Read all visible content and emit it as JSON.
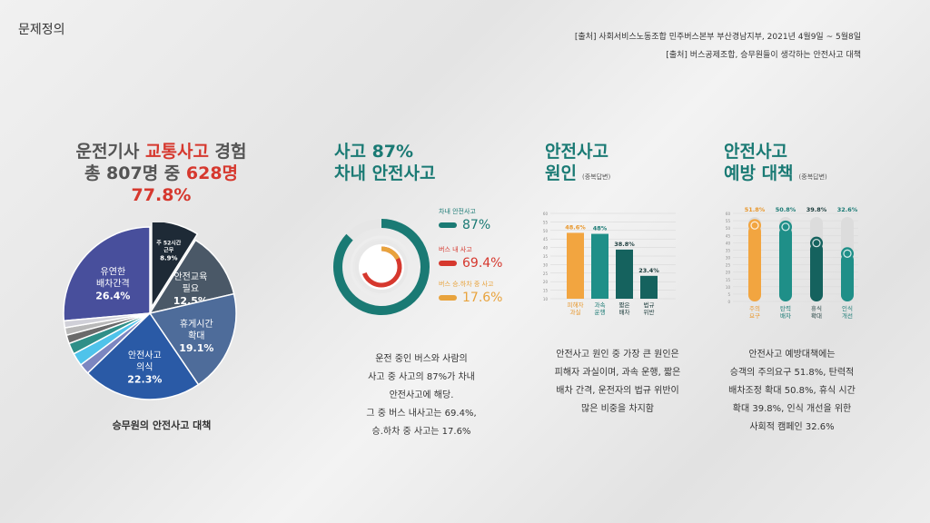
{
  "header": {
    "title": "문제정의",
    "source_1": "[출처] 사회서비스노동조합 민주버스본부 부산경남지부, 2021년 4월9일 ~ 5월8일",
    "source_2": "[출처] 버스공제조합, 승무원들이 생각하는 안전사고 대책"
  },
  "pie_section": {
    "title_1a": "운전기사 ",
    "title_1b": "교통사고",
    "title_1c": " 경험",
    "title_2a": "총 807명 중 ",
    "title_2b": "628명",
    "title_3": "77.8%",
    "caption": "승무원의 안전사고 대책"
  },
  "accident_section": {
    "title_1": "사고 87%",
    "title_2": "차내 안전사고",
    "desc": [
      "운전 중인 버스와 사람의",
      "사고 중 사고의 87%가 차내",
      "안전사고에 해당.",
      "그 중 버스 내사고는 69.4%,",
      "승.하차 중 사고는 17.6%"
    ]
  },
  "cause_section": {
    "title_1": "안전사고",
    "title_2": "원인",
    "note": "(중복답변)",
    "desc": [
      "안전사고 원인 중 가장 큰 원인은",
      "피해자 과실이며, 과속 운행, 짧은",
      "배차 간격, 운전자의 법규 위반이",
      "많은 비중을 차지함"
    ]
  },
  "prevention_section": {
    "title_1": "안전사고",
    "title_2": "예방 대책",
    "note": "(중복답변)",
    "desc": [
      "안전사고 예방대책에는",
      "승객의 주의요구 51.8%, 탄력적",
      "배차조정 확대 50.8%, 휴식 시간",
      "확대 39.8%, 인식 개선을 위한",
      "사회적 캠페인 32.6%"
    ]
  },
  "chart_data": [
    {
      "type": "pie",
      "title": "승무원의 안전사고 대책",
      "slices": [
        {
          "label": [
            "유연한",
            "배차간격"
          ],
          "value_label": "26.4%",
          "value": 26.4,
          "color": "#484f9c"
        },
        {
          "label": [
            "주 52시간",
            "근무"
          ],
          "value_label": "8.9%",
          "value": 8.9,
          "color": "#1e2a36"
        },
        {
          "label": [
            "안전교육",
            "필요"
          ],
          "value_label": "12.5%",
          "value": 12.5,
          "color": "#4a5867"
        },
        {
          "label": [
            "휴게시간",
            "확대"
          ],
          "value_label": "19.1%",
          "value": 19.1,
          "color": "#4e6c9a"
        },
        {
          "label": [
            "안전사고",
            "의식"
          ],
          "value_label": "22.3%",
          "value": 22.3,
          "color": "#2a5aa6"
        },
        {
          "label": [],
          "value_label": "",
          "value": 2.0,
          "color": "#7c86c0"
        },
        {
          "label": [],
          "value_label": "",
          "value": 2.4,
          "color": "#4fc3ea"
        },
        {
          "label": [],
          "value_label": "",
          "value": 2.1,
          "color": "#2f8f88"
        },
        {
          "label": [],
          "value_label": "",
          "value": 1.6,
          "color": "#6a6a6a"
        },
        {
          "label": [],
          "value_label": "",
          "value": 1.4,
          "color": "#b8b8b8"
        },
        {
          "label": [],
          "value_label": "",
          "value": 1.3,
          "color": "#d0d0d8"
        }
      ]
    },
    {
      "type": "pie",
      "title": "차내 안전사고",
      "series": [
        {
          "name": "차내 안전사고",
          "value": 87,
          "value_label": "87%",
          "color": "#1a7a74"
        },
        {
          "name": "버스 내 사고",
          "value": 69.4,
          "value_label": "69.4%",
          "color": "#d6382e"
        },
        {
          "name": "버스 승.하차 중 사고",
          "value": 17.6,
          "value_label": "17.6%",
          "color": "#e8a33d"
        }
      ]
    },
    {
      "type": "bar",
      "title": "안전사고 원인",
      "categories": [
        [
          "피해자",
          "과실"
        ],
        [
          "과속",
          "운행"
        ],
        [
          "짧은",
          "배차"
        ],
        [
          "법규",
          "위반"
        ]
      ],
      "values": [
        48.6,
        48,
        38.8,
        23.4
      ],
      "value_labels": [
        "48.6%",
        "48%",
        "38.8%",
        "23.4%"
      ],
      "colors": [
        "#f2a540",
        "#1f8f88",
        "#15625e",
        "#15625e"
      ],
      "label_colors": [
        "#e8962a",
        "#1a7a74",
        "#1a3a3a",
        "#1a3a3a"
      ],
      "yticks": [
        10,
        15,
        20,
        25,
        30,
        35,
        40,
        45,
        50,
        55,
        60
      ],
      "ylim": [
        10,
        60
      ]
    },
    {
      "type": "bar",
      "title": "안전사고 예방 대책",
      "categories": [
        [
          "주의",
          "요구"
        ],
        [
          "탄력",
          "배차"
        ],
        [
          "휴식",
          "확대"
        ],
        [
          "인식",
          "개선"
        ]
      ],
      "values": [
        51.8,
        50.8,
        39.8,
        32.6
      ],
      "value_labels": [
        "51.8%",
        "50.8%",
        "39.8%",
        "32.6%"
      ],
      "colors": [
        "#f2a540",
        "#1f8f88",
        "#15625e",
        "#1f8f88"
      ],
      "label_colors": [
        "#e8962a",
        "#1a7a74",
        "#1a3a3a",
        "#1a7a74"
      ],
      "yticks": [
        0,
        5,
        10,
        15,
        20,
        25,
        30,
        35,
        40,
        45,
        50,
        55,
        60
      ],
      "ylim": [
        0,
        60
      ]
    }
  ]
}
